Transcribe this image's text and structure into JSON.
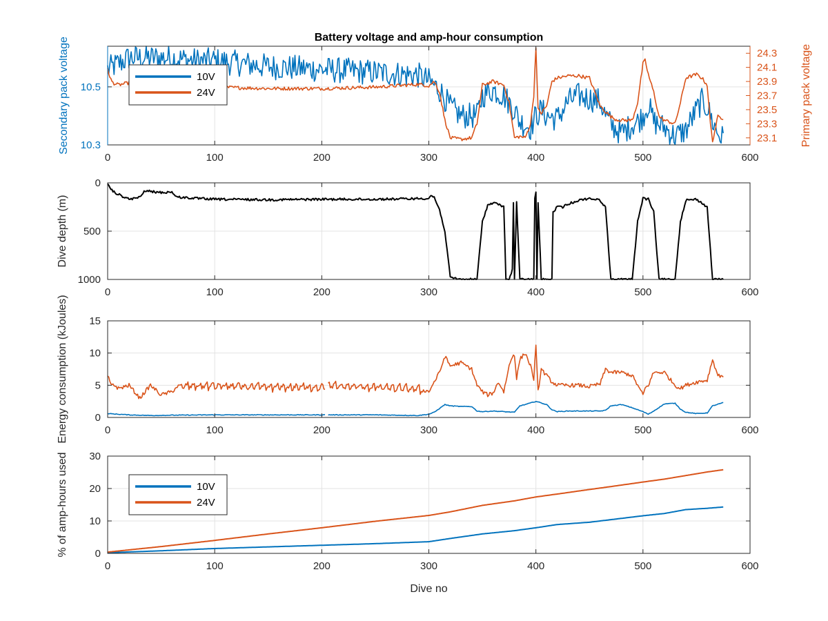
{
  "colors": {
    "series_10v": "#0072BD",
    "series_24v": "#D95319",
    "depth": "#000000",
    "grid": "#e3e3e3",
    "axis": "#262626"
  },
  "chart_data": [
    {
      "type": "line",
      "title": "Battery voltage and amp-hour consumption",
      "xlabel": "",
      "ylabel": "Secondary pack voltage",
      "ylabel_right": "Primary pack voltage",
      "xlim": [
        0,
        600
      ],
      "ylim": [
        10.3,
        10.64
      ],
      "ylim_right": [
        23.0,
        24.4
      ],
      "xticks": [
        "0",
        "100",
        "200",
        "300",
        "400",
        "500",
        "600"
      ],
      "yticks": [
        "10.3",
        "10.5"
      ],
      "yticks_right": [
        "23.1",
        "23.3",
        "23.5",
        "23.7",
        "23.9",
        "24.1",
        "24.3"
      ],
      "grid": true,
      "legend": {
        "placement": "top-left",
        "entries": [
          "10V",
          "24V"
        ]
      },
      "series": [
        {
          "name": "10V",
          "axis": "left",
          "noise": 0.045,
          "x": [
            0,
            10,
            20,
            40,
            60,
            80,
            100,
            150,
            200,
            250,
            290,
            300,
            310,
            320,
            330,
            345,
            350,
            360,
            370,
            380,
            385,
            395,
            400,
            405,
            410,
            420,
            430,
            440,
            450,
            460,
            465,
            470,
            480,
            490,
            495,
            500,
            505,
            510,
            520,
            530,
            540,
            550,
            555,
            560,
            565,
            570,
            575
          ],
          "y": [
            10.56,
            10.58,
            10.6,
            10.6,
            10.6,
            10.59,
            10.59,
            10.57,
            10.56,
            10.55,
            10.54,
            10.52,
            10.49,
            10.43,
            10.4,
            10.4,
            10.47,
            10.49,
            10.47,
            10.42,
            10.38,
            10.36,
            10.4,
            10.42,
            10.4,
            10.39,
            10.45,
            10.47,
            10.46,
            10.45,
            10.4,
            10.37,
            10.34,
            10.37,
            10.38,
            10.4,
            10.44,
            10.38,
            10.36,
            10.33,
            10.35,
            10.42,
            10.45,
            10.43,
            10.38,
            10.34,
            10.32
          ]
        },
        {
          "name": "24V",
          "axis": "right",
          "noise": 0.025,
          "x": [
            0,
            2,
            5,
            10,
            20,
            50,
            80,
            100,
            150,
            200,
            250,
            290,
            300,
            305,
            310,
            315,
            320,
            330,
            340,
            345,
            350,
            360,
            370,
            375,
            378,
            380,
            385,
            390,
            395,
            398,
            400,
            402,
            405,
            410,
            415,
            420,
            430,
            440,
            450,
            460,
            470,
            475,
            480,
            490,
            495,
            500,
            502,
            505,
            510,
            515,
            520,
            530,
            535,
            540,
            550,
            555,
            560,
            563,
            565,
            570,
            575
          ],
          "y": [
            24.1,
            23.95,
            23.88,
            23.85,
            23.88,
            23.86,
            23.84,
            23.82,
            23.8,
            23.8,
            23.82,
            23.86,
            23.84,
            23.9,
            23.75,
            23.35,
            23.1,
            23.08,
            23.1,
            23.3,
            23.85,
            23.9,
            23.85,
            23.6,
            23.3,
            23.1,
            23.12,
            23.1,
            23.3,
            23.7,
            24.4,
            23.5,
            23.45,
            23.55,
            23.9,
            23.95,
            23.98,
            23.98,
            23.95,
            23.55,
            23.4,
            23.36,
            23.35,
            23.35,
            23.6,
            24.15,
            24.2,
            24.0,
            23.75,
            23.4,
            23.35,
            23.3,
            23.6,
            23.95,
            24.0,
            23.95,
            23.85,
            23.3,
            23.05,
            23.4,
            23.38
          ]
        }
      ]
    },
    {
      "type": "line",
      "title": "",
      "xlabel": "",
      "ylabel": "Dive depth (m)",
      "xlim": [
        0,
        600
      ],
      "ylim": [
        0,
        1000
      ],
      "y_reversed": true,
      "xticks": [
        "0",
        "100",
        "200",
        "300",
        "400",
        "500",
        "600"
      ],
      "yticks": [
        "0",
        "500",
        "1000"
      ],
      "grid": true,
      "series": [
        {
          "name": "",
          "noise": 12,
          "x": [
            0,
            5,
            10,
            20,
            30,
            35,
            40,
            50,
            60,
            65,
            70,
            80,
            100,
            150,
            200,
            250,
            280,
            300,
            302,
            305,
            310,
            315,
            320,
            330,
            340,
            345,
            350,
            355,
            360,
            365,
            370,
            372,
            375,
            378,
            379,
            380,
            382,
            385,
            398,
            399,
            400,
            401,
            402,
            405,
            415,
            416,
            420,
            425,
            430,
            440,
            450,
            460,
            465,
            470,
            490,
            495,
            500,
            505,
            510,
            515,
            530,
            535,
            540,
            550,
            560,
            565,
            575
          ],
          "y": [
            20,
            90,
            120,
            170,
            150,
            80,
            90,
            100,
            95,
            150,
            150,
            160,
            170,
            175,
            170,
            170,
            165,
            160,
            130,
            150,
            280,
            500,
            980,
            1000,
            1000,
            1000,
            400,
            230,
            210,
            220,
            250,
            1000,
            1000,
            900,
            200,
            1000,
            200,
            1000,
            1000,
            150,
            100,
            1000,
            200,
            1000,
            1000,
            300,
            250,
            250,
            220,
            180,
            160,
            180,
            250,
            1000,
            1000,
            400,
            160,
            170,
            300,
            1000,
            1000,
            400,
            180,
            170,
            250,
            1000,
            1000
          ]
        }
      ]
    },
    {
      "type": "line",
      "title": "",
      "xlabel": "",
      "ylabel": "Energy consumption (kJoules)",
      "xlim": [
        0,
        600
      ],
      "ylim": [
        0,
        15
      ],
      "xticks": [
        "0",
        "100",
        "200",
        "300",
        "400",
        "500",
        "600"
      ],
      "yticks": [
        "0",
        "5",
        "10",
        "15"
      ],
      "grid": true,
      "series": [
        {
          "name": "10V",
          "noise": 0.05,
          "gap": [
            203,
            206
          ],
          "x": [
            0,
            10,
            20,
            40,
            60,
            100,
            150,
            200,
            203,
            206,
            250,
            290,
            300,
            305,
            310,
            315,
            320,
            330,
            340,
            345,
            350,
            360,
            370,
            380,
            385,
            390,
            400,
            410,
            415,
            420,
            430,
            450,
            460,
            465,
            470,
            480,
            490,
            500,
            505,
            510,
            520,
            530,
            535,
            540,
            550,
            560,
            565,
            575
          ],
          "y": [
            0.6,
            0.5,
            0.4,
            0.3,
            0.35,
            0.4,
            0.4,
            0.4,
            0.4,
            0.4,
            0.4,
            0.3,
            0.5,
            0.8,
            1.4,
            2.0,
            1.8,
            1.7,
            1.7,
            1.0,
            0.9,
            1.0,
            0.9,
            0.8,
            1.8,
            2.0,
            2.5,
            2.0,
            1.2,
            0.9,
            1.0,
            1.0,
            1.0,
            1.1,
            1.8,
            2.0,
            1.5,
            0.9,
            0.5,
            1.0,
            2.1,
            2.2,
            1.3,
            0.8,
            0.6,
            0.7,
            1.8,
            2.3
          ]
        },
        {
          "name": "24V",
          "noise": 0.3,
          "sawtooth": [
            70,
            295,
            6,
            1.2
          ],
          "gap": [
            203,
            206
          ],
          "x": [
            0,
            3,
            5,
            10,
            20,
            25,
            30,
            35,
            40,
            50,
            60,
            65,
            70,
            100,
            150,
            200,
            203,
            206,
            250,
            290,
            300,
            305,
            310,
            315,
            320,
            330,
            340,
            345,
            350,
            355,
            360,
            365,
            370,
            375,
            378,
            380,
            382,
            385,
            390,
            395,
            398,
            400,
            402,
            405,
            410,
            415,
            420,
            430,
            440,
            450,
            460,
            465,
            470,
            480,
            490,
            495,
            500,
            502,
            505,
            510,
            520,
            530,
            535,
            540,
            550,
            560,
            565,
            570,
            575
          ],
          "y": [
            6.5,
            5.0,
            5.2,
            4.5,
            5.0,
            4.0,
            3.0,
            4.0,
            5.0,
            3.5,
            4.0,
            4.8,
            5.0,
            5.0,
            4.8,
            4.8,
            5.0,
            5.0,
            4.8,
            4.5,
            4.0,
            5.5,
            7.0,
            9.5,
            8.0,
            8.5,
            7.5,
            5.0,
            4.0,
            3.5,
            3.8,
            5.5,
            4.0,
            8.0,
            9.5,
            9.8,
            6.0,
            9.0,
            10.0,
            8.0,
            6.0,
            11.0,
            4.0,
            7.5,
            6.5,
            5.5,
            5.0,
            5.0,
            5.0,
            4.8,
            5.2,
            7.5,
            7.0,
            7.0,
            6.5,
            5.0,
            3.5,
            4.5,
            5.0,
            7.0,
            7.0,
            5.0,
            4.5,
            5.0,
            5.5,
            5.8,
            9.0,
            6.5,
            6.5
          ]
        }
      ]
    },
    {
      "type": "line",
      "title": "",
      "xlabel": "Dive no",
      "ylabel": "% of amp-hours used",
      "xlim": [
        0,
        600
      ],
      "ylim": [
        0,
        30
      ],
      "xticks": [
        "0",
        "100",
        "200",
        "300",
        "400",
        "500",
        "600"
      ],
      "yticks": [
        "0",
        "10",
        "20",
        "30"
      ],
      "grid": true,
      "legend": {
        "placement": "top-left",
        "entries": [
          "10V",
          "24V"
        ]
      },
      "series": [
        {
          "name": "10V",
          "noise": 0,
          "x": [
            0,
            50,
            100,
            150,
            200,
            250,
            300,
            320,
            350,
            380,
            400,
            420,
            450,
            470,
            500,
            520,
            540,
            560,
            575
          ],
          "y": [
            0.2,
            0.8,
            1.5,
            2.0,
            2.5,
            3.0,
            3.6,
            4.6,
            6.0,
            7.0,
            7.9,
            8.9,
            9.6,
            10.4,
            11.6,
            12.3,
            13.5,
            13.9,
            14.3
          ]
        },
        {
          "name": "24V",
          "noise": 0,
          "x": [
            0,
            50,
            100,
            150,
            200,
            250,
            300,
            320,
            350,
            380,
            400,
            420,
            450,
            470,
            500,
            520,
            540,
            560,
            575
          ],
          "y": [
            0.4,
            2.1,
            4.0,
            6.0,
            7.9,
            9.9,
            11.7,
            12.8,
            14.8,
            16.2,
            17.4,
            18.3,
            19.7,
            20.6,
            22.0,
            22.9,
            24.0,
            25.1,
            25.8
          ]
        }
      ]
    }
  ]
}
